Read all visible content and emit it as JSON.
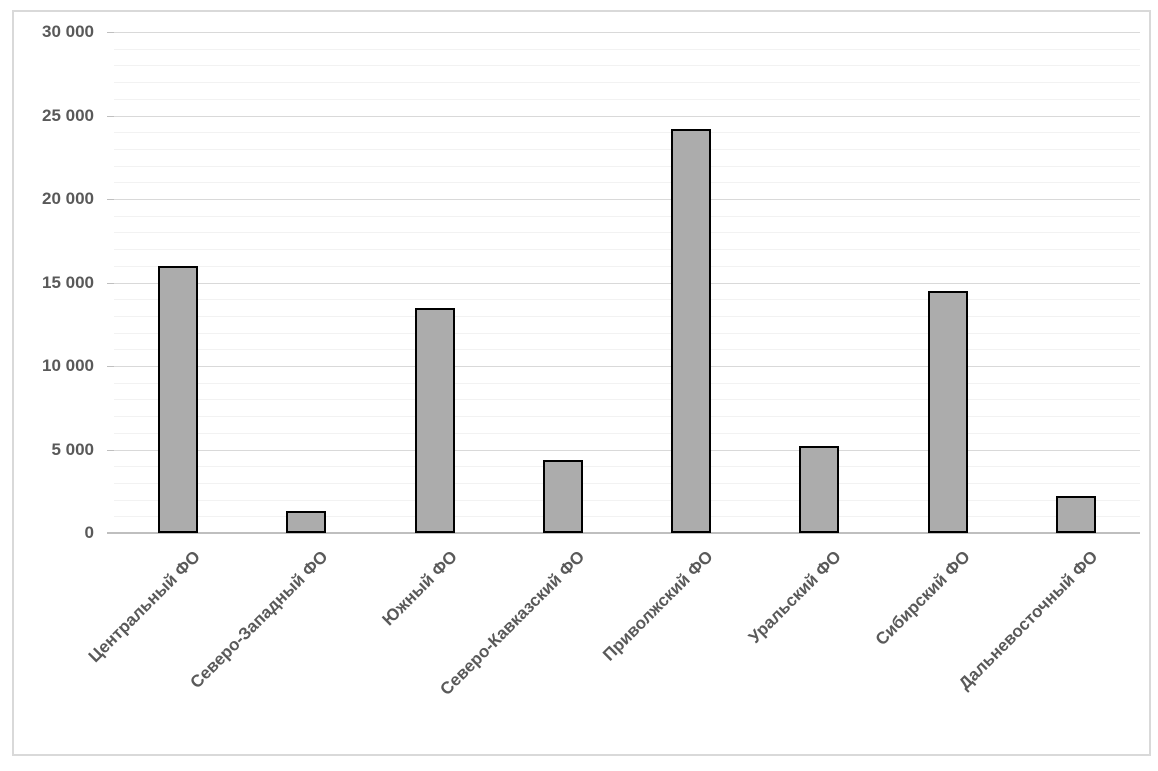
{
  "chart_data": {
    "type": "bar",
    "title": "",
    "xlabel": "",
    "ylabel": "",
    "categories": [
      "Центральный ФО",
      "Северо-Западный ФО",
      "Южный ФО",
      "Северо-Кавказский ФО",
      "Приволжский ФО",
      "Уральский ФО",
      "Сибирский ФО",
      "Дальневосточный ФО"
    ],
    "values": [
      16000,
      1300,
      13500,
      4400,
      24200,
      5200,
      14500,
      2200
    ],
    "ylim": [
      0,
      30000
    ],
    "y_major_step": 5000,
    "y_minor_step": 1000,
    "y_tick_labels": [
      "0",
      "5 000",
      "10 000",
      "15 000",
      "20 000",
      "25 000",
      "30 000"
    ],
    "grid": "horizontal major and minor gridlines on",
    "legend": "none",
    "x_label_rotation_deg": 45,
    "series_name": ""
  },
  "colors": {
    "background": "#FFFFFF",
    "chart_border": "#D9D9D9",
    "bar_fill": "#ACACAC",
    "bar_border": "#000000",
    "gridline_major": "#D9D9D9",
    "gridline_minor": "#F2F2F2",
    "axis_line": "#BFBFBF",
    "tick_text": "#595959"
  }
}
